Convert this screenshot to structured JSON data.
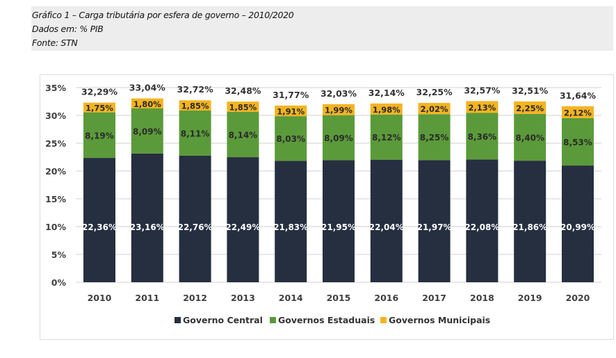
{
  "header": {
    "title": "Gráfico 1 – Carga tributária por esfera de governo – 2010/2020",
    "units": "Dados em: % PIB",
    "source": "Fonte: STN"
  },
  "chart_data": {
    "type": "bar",
    "stacked": true,
    "title": "Gráfico 1 – Carga tributária por esfera de governo – 2010/2020",
    "xlabel": "",
    "ylabel": "% PIB",
    "ylim": [
      0,
      35
    ],
    "yticks": [
      0,
      5,
      10,
      15,
      20,
      25,
      30,
      35
    ],
    "ytick_labels": [
      "0%",
      "5%",
      "10%",
      "15%",
      "20%",
      "25%",
      "30%",
      "35%"
    ],
    "grid": true,
    "legend_position": "bottom",
    "categories": [
      "2010",
      "2011",
      "2012",
      "2013",
      "2014",
      "2015",
      "2016",
      "2017",
      "2018",
      "2019",
      "2020"
    ],
    "series": [
      {
        "name": "Governo Central",
        "color": "#262f40",
        "label_color": "#ffffff",
        "values": [
          22.36,
          23.16,
          22.76,
          22.49,
          21.83,
          21.95,
          22.04,
          21.97,
          22.08,
          21.86,
          20.99
        ],
        "labels": [
          "22,36%",
          "23,16%",
          "22,76%",
          "22,49%",
          "21,83%",
          "21,95%",
          "22,04%",
          "21,97%",
          "22,08%",
          "21,86%",
          "20,99%"
        ]
      },
      {
        "name": "Governos Estaduais",
        "color": "#5b9a3a",
        "label_color": "#2a2a2a",
        "values": [
          8.19,
          8.09,
          8.11,
          8.14,
          8.03,
          8.09,
          8.12,
          8.25,
          8.36,
          8.4,
          8.53
        ],
        "labels": [
          "8,19%",
          "8,09%",
          "8,11%",
          "8,14%",
          "8,03%",
          "8,09%",
          "8,12%",
          "8,25%",
          "8,36%",
          "8,40%",
          "8,53%"
        ]
      },
      {
        "name": "Governos Municipais",
        "color": "#f4b421",
        "label_color": "#2a2a2a",
        "values": [
          1.75,
          1.8,
          1.85,
          1.85,
          1.91,
          1.99,
          1.98,
          2.02,
          2.13,
          2.25,
          2.12
        ],
        "labels": [
          "1,75%",
          "1,80%",
          "1,85%",
          "1,85%",
          "1,91%",
          "1,99%",
          "1,98%",
          "2,02%",
          "2,13%",
          "2,25%",
          "2,12%"
        ]
      }
    ],
    "totals": [
      32.29,
      33.04,
      32.72,
      32.48,
      31.77,
      32.03,
      32.14,
      32.25,
      32.57,
      32.51,
      31.64
    ],
    "total_labels": [
      "32,29%",
      "33,04%",
      "32,72%",
      "32,48%",
      "31,77%",
      "32,03%",
      "32,14%",
      "32,25%",
      "32,57%",
      "32,51%",
      "31,64%"
    ]
  }
}
